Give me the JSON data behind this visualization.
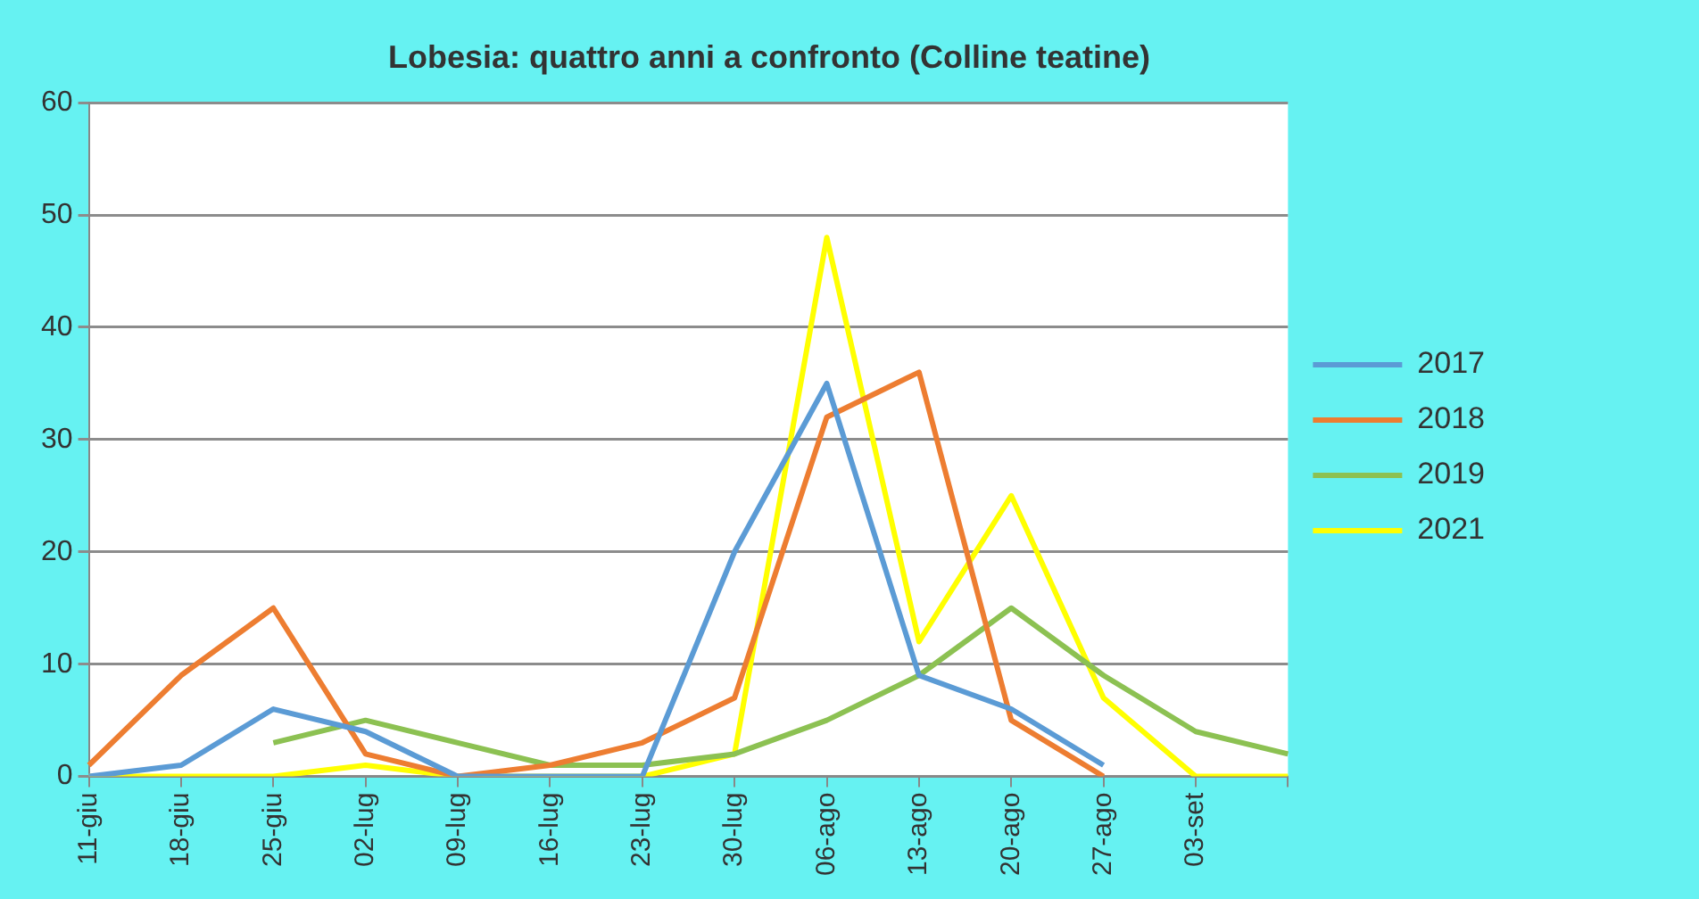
{
  "chart_data": {
    "type": "line",
    "title": "Lobesia: quattro anni a confronto (Colline teatine)",
    "categories": [
      "11-giu",
      "18-giu",
      "25-giu",
      "02-lug",
      "09-lug",
      "16-lug",
      "23-lug",
      "30-lug",
      "06-ago",
      "13-ago",
      "20-ago",
      "27-ago",
      "03-set",
      null
    ],
    "series": [
      {
        "name": "2017",
        "color": "#5b9bd5",
        "values": [
          0,
          1,
          6,
          4,
          0,
          0,
          0,
          20,
          35,
          9,
          6,
          1,
          null,
          null
        ]
      },
      {
        "name": "2018",
        "color": "#ed7d31",
        "values": [
          1,
          9,
          15,
          2,
          0,
          1,
          3,
          7,
          32,
          36,
          5,
          0,
          null,
          null
        ]
      },
      {
        "name": "2019",
        "color": "#8cc152",
        "values": [
          null,
          null,
          3,
          5,
          3,
          1,
          1,
          2,
          5,
          9,
          15,
          9,
          4,
          2
        ]
      },
      {
        "name": "2021",
        "color": "#ffff00",
        "values": [
          0,
          0,
          0,
          1,
          0,
          0,
          0,
          2,
          48,
          12,
          25,
          7,
          0,
          0
        ]
      }
    ],
    "ylim": [
      0,
      60
    ],
    "yticks": [
      0,
      10,
      20,
      30,
      40,
      50,
      60
    ],
    "grid": "y",
    "legend": "right",
    "marker": "none",
    "line_style": "solid"
  }
}
